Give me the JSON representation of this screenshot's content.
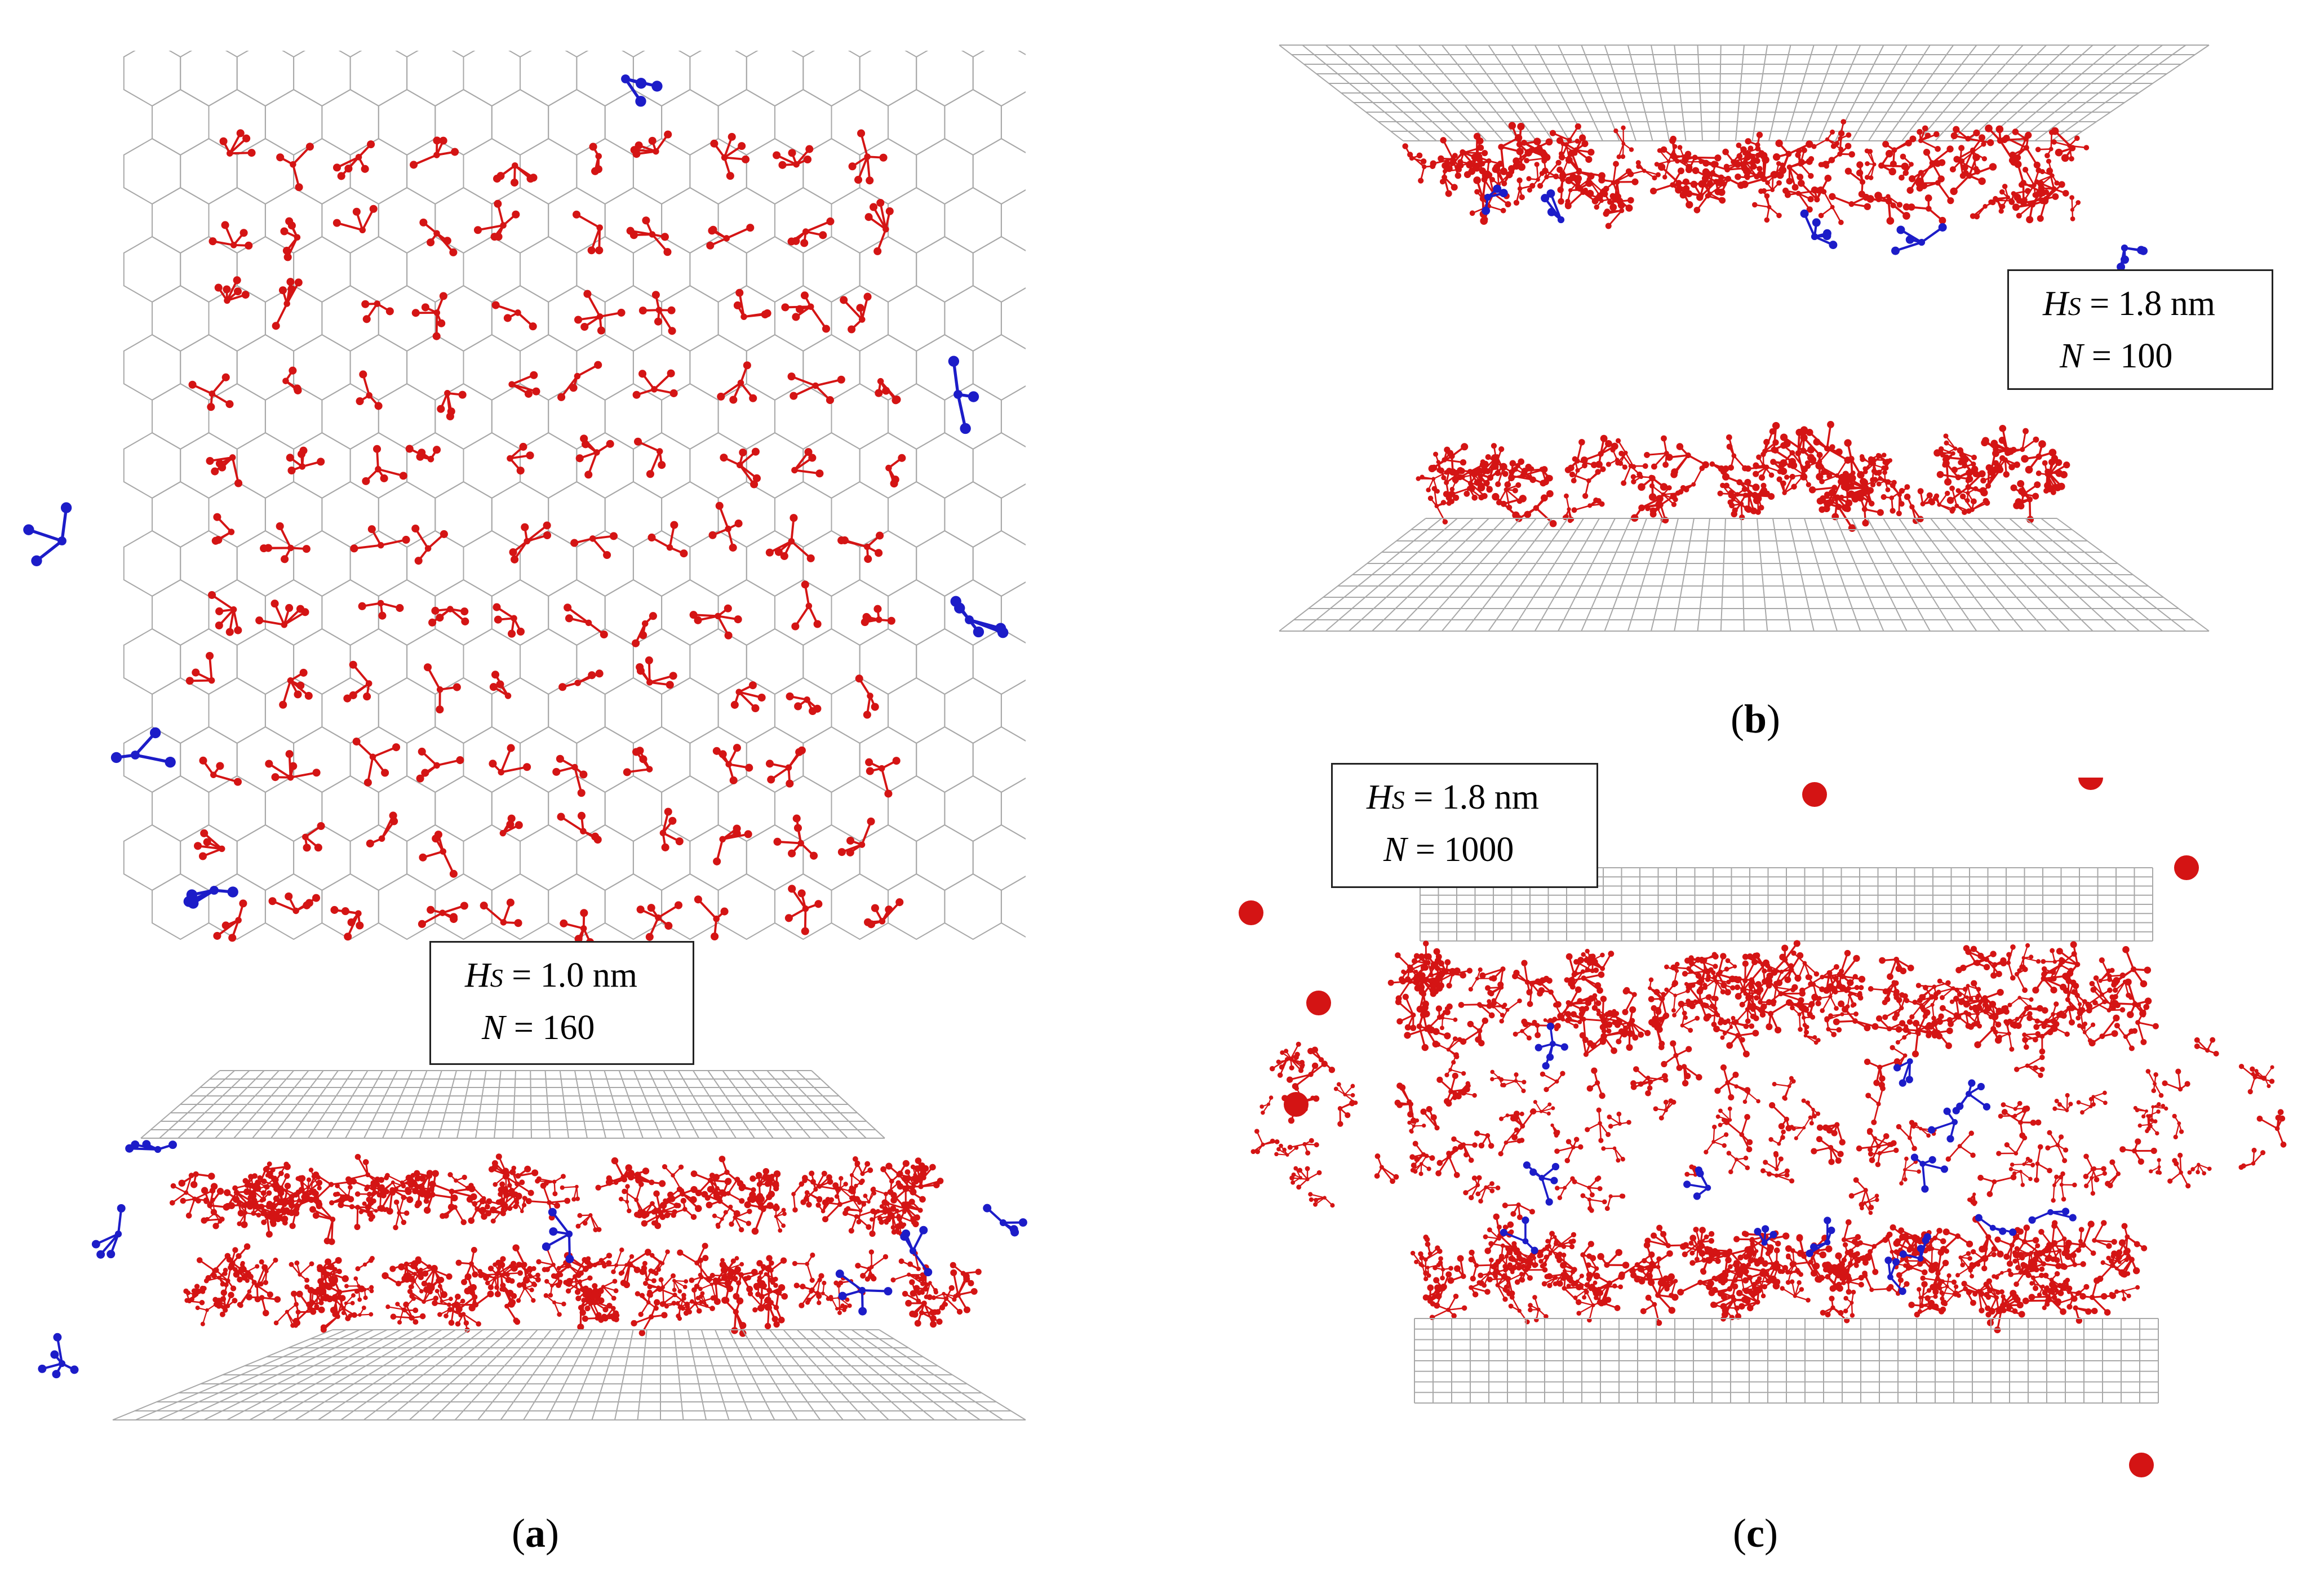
{
  "figure": {
    "panels": [
      {
        "id": "a",
        "caption_open": "(",
        "caption_letter": "a",
        "caption_close": ")",
        "hs_symbol": "H",
        "hs_subscript": "S",
        "hs_rest": " = 1.0 nm",
        "n_symbol": "N",
        "n_rest": " = 160"
      },
      {
        "id": "b",
        "caption_open": "(",
        "caption_letter": "b",
        "caption_close": ")",
        "hs_symbol": "H",
        "hs_subscript": "S",
        "hs_rest": " = 1.8 nm",
        "n_symbol": "N",
        "n_rest": " = 100"
      },
      {
        "id": "c",
        "caption_open": "(",
        "caption_letter": "c",
        "caption_close": ")",
        "hs_symbol": "H",
        "hs_subscript": "S",
        "hs_rest": " = 1.8 nm",
        "n_symbol": "N",
        "n_rest": " = 1000"
      }
    ],
    "colors": {
      "lattice": "#a8a8a8",
      "molecule_main": "#d41414",
      "molecule_alt": "#1c1cc8"
    }
  }
}
